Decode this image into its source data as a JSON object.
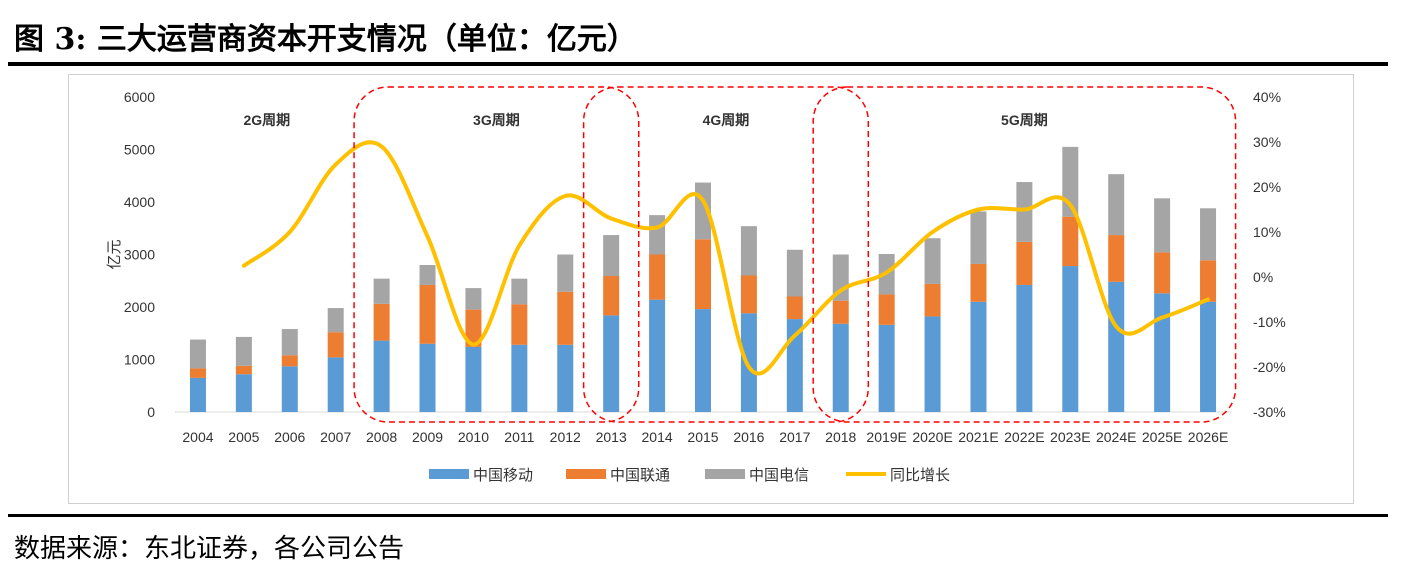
{
  "figure": {
    "title": "图 3: 三大运营商资本开支情况（单位：亿元）",
    "source": "数据来源：东北证券，各公司公告"
  },
  "chart_data": {
    "type": "bar",
    "stacked": true,
    "title": "",
    "ylabel": "亿元",
    "ylim": [
      0,
      6000
    ],
    "y_ticks": [
      "0",
      "1000",
      "2000",
      "3000",
      "4000",
      "5000",
      "6000"
    ],
    "y2lim": [
      -30,
      40
    ],
    "y2_ticks": [
      "-30%",
      "-20%",
      "-10%",
      "0%",
      "10%",
      "20%",
      "30%",
      "40%"
    ],
    "categories": [
      "2004",
      "2005",
      "2006",
      "2007",
      "2008",
      "2009",
      "2010",
      "2011",
      "2012",
      "2013",
      "2014",
      "2015",
      "2016",
      "2017",
      "2018",
      "2019E",
      "2020E",
      "2021E",
      "2022E",
      "2023E",
      "2024E",
      "2025E",
      "2026E"
    ],
    "series": [
      {
        "name": "中国移动",
        "color": "#5b9bd5",
        "values": [
          650,
          720,
          870,
          1040,
          1360,
          1300,
          1240,
          1280,
          1280,
          1840,
          2140,
          1960,
          1880,
          1770,
          1680,
          1660,
          1820,
          2100,
          2420,
          2780,
          2480,
          2260,
          2100
        ]
      },
      {
        "name": "中国联通",
        "color": "#ed7d31",
        "values": [
          180,
          160,
          210,
          480,
          700,
          1120,
          710,
          770,
          1010,
          750,
          860,
          1330,
          720,
          430,
          440,
          580,
          620,
          720,
          820,
          940,
          890,
          780,
          790
        ]
      },
      {
        "name": "中国电信",
        "color": "#a5a5a5",
        "values": [
          550,
          550,
          500,
          460,
          480,
          380,
          410,
          490,
          710,
          780,
          750,
          1080,
          940,
          890,
          880,
          770,
          870,
          1000,
          1140,
          1330,
          1160,
          1030,
          990
        ]
      }
    ],
    "line_series": {
      "name": "同比增长",
      "color": "#ffc000",
      "axis": "right",
      "values": [
        null,
        2.5,
        10,
        25,
        29,
        9,
        -15,
        7,
        18,
        13,
        11,
        17,
        -20,
        -13,
        -3,
        1,
        10,
        15,
        15,
        16,
        -11,
        -9,
        -5
      ]
    },
    "legend": [
      "中国移动",
      "中国联通",
      "中国电信",
      "同比增长"
    ],
    "legend_position": "bottom",
    "grid": false,
    "periods": [
      {
        "label": "2G周期",
        "from": "2004",
        "to": "2007",
        "boxed": false
      },
      {
        "label": "3G周期",
        "from": "2008",
        "to": "2013",
        "boxed": true
      },
      {
        "label": "4G周期",
        "from": "2013",
        "to": "2018",
        "boxed": true
      },
      {
        "label": "5G周期",
        "from": "2018",
        "to": "2026E",
        "boxed": true
      }
    ]
  }
}
